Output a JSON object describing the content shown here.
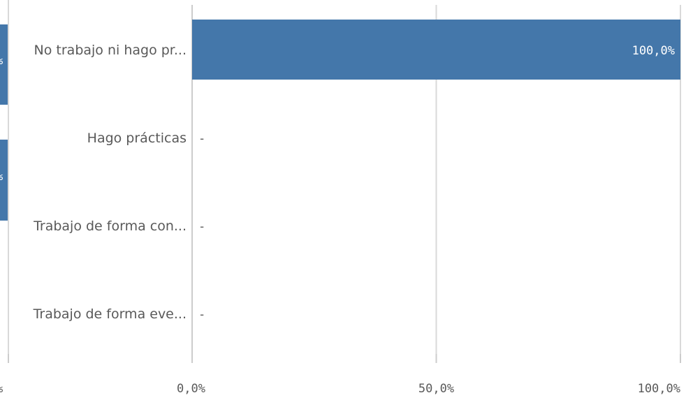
{
  "chart_data": {
    "type": "bar",
    "orientation": "horizontal",
    "categories": [
      "No trabajo ni hago pr...",
      "Hago prácticas",
      "Trabajo de forma con...",
      "Trabajo de forma eve..."
    ],
    "values": [
      100,
      0,
      0,
      0
    ],
    "data_labels": [
      "100,0%",
      "-",
      "-",
      "-"
    ],
    "xlim": [
      0,
      100
    ],
    "x_ticks": [
      0,
      50,
      100
    ],
    "x_tick_labels": [
      "0,0%",
      "50,0%",
      "100,0%"
    ],
    "grid": true,
    "bar_color": "#4477aa",
    "label_inside_color": "#ffffff",
    "label_outside_color": "#595959",
    "left_partial_panel": {
      "tick_label": "%",
      "data_labels": [
        "%",
        "%"
      ]
    }
  }
}
